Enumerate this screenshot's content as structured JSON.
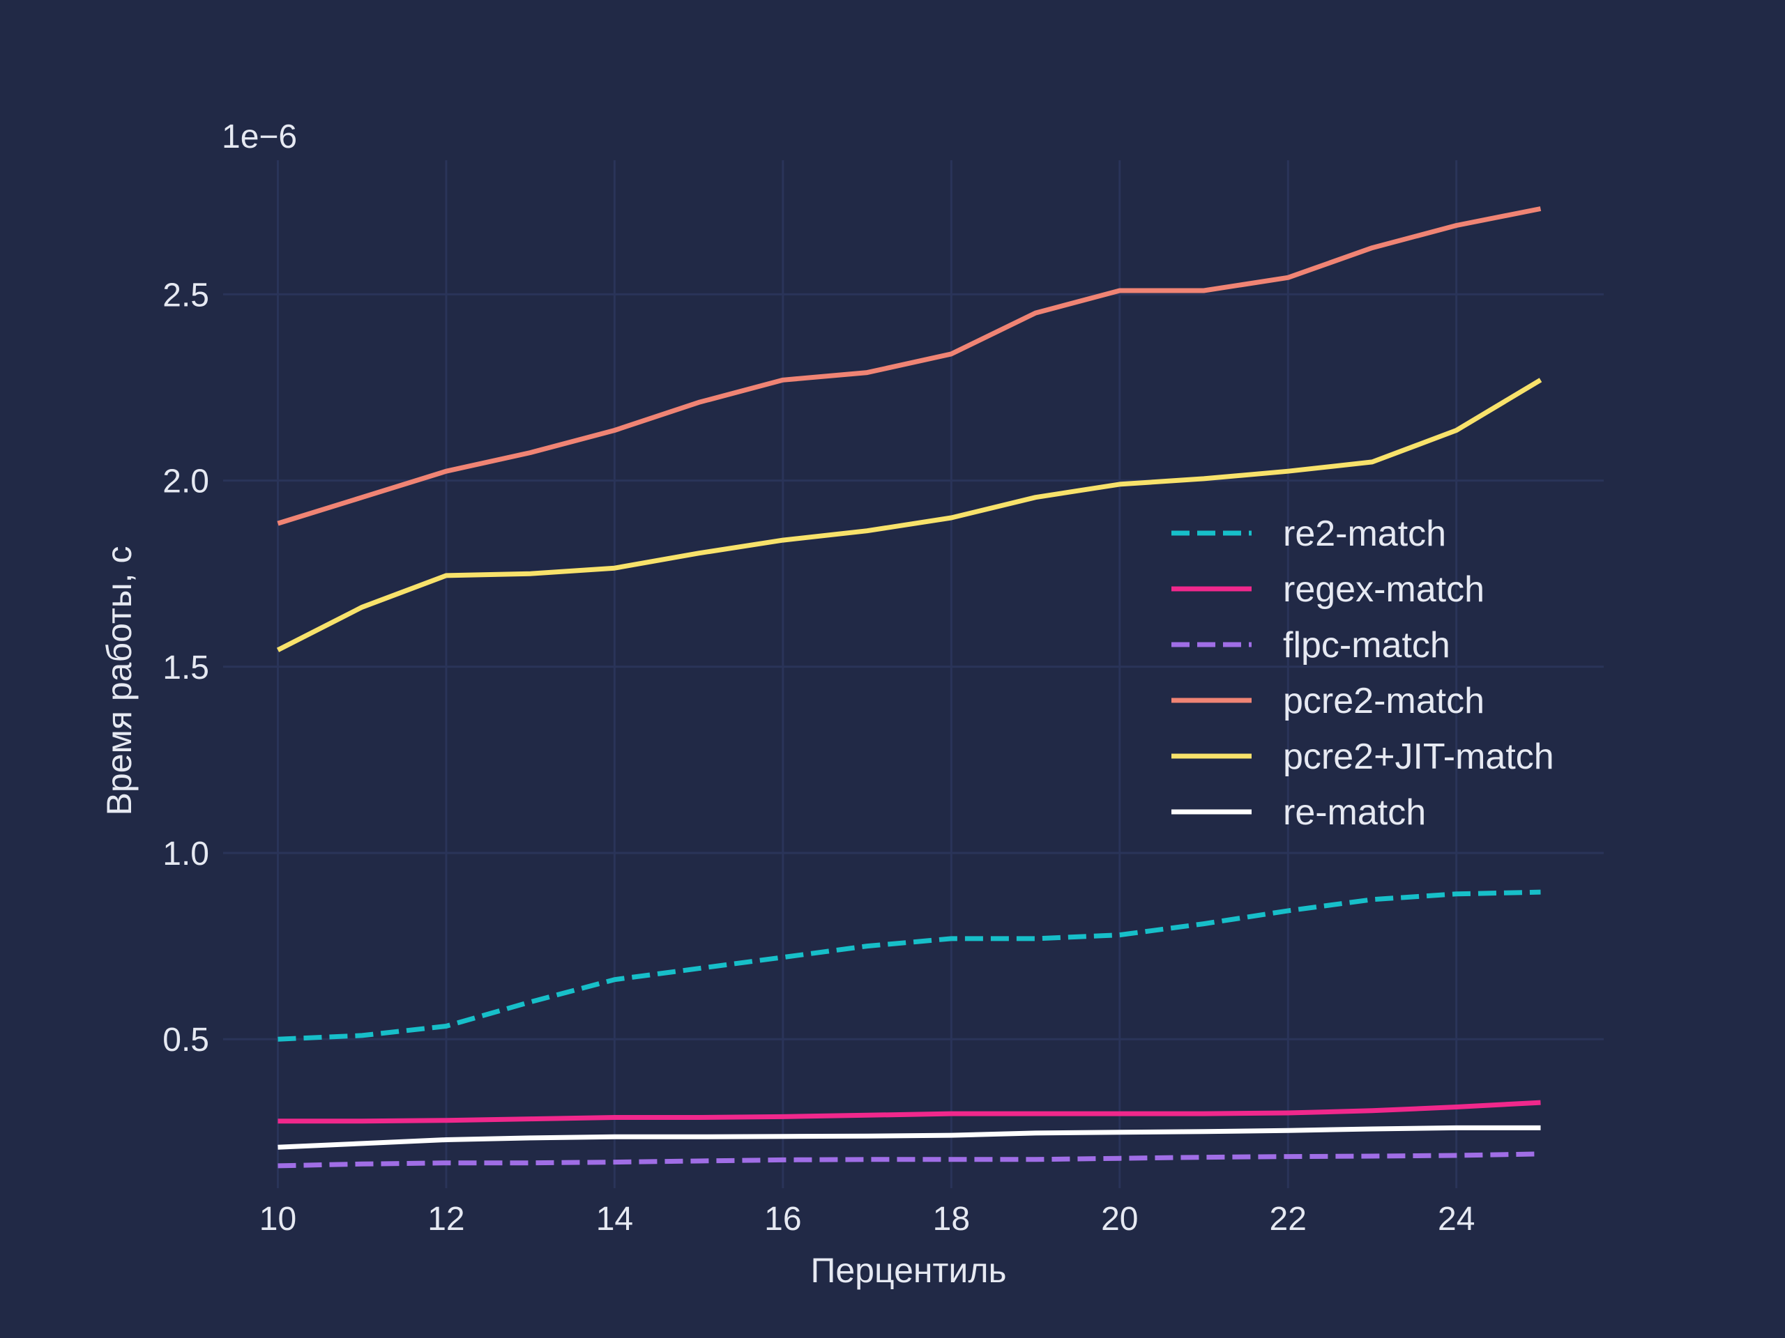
{
  "chart_data": {
    "type": "line",
    "title": "",
    "xlabel": "Перцентиль",
    "ylabel": "Время работы, с",
    "y_offset_label": "1e−6",
    "y_scale": 1e-06,
    "xlim": [
      9.35,
      25.75
    ],
    "ylim": [
      0.1,
      2.86
    ],
    "x_ticks": [
      10,
      12,
      14,
      16,
      18,
      20,
      22,
      24
    ],
    "y_ticks": [
      0.5,
      1.0,
      1.5,
      2.0,
      2.5
    ],
    "y_tick_labels": [
      "0.5",
      "1.0",
      "1.5",
      "2.0",
      "2.5"
    ],
    "grid": true,
    "legend_position": "center-right",
    "x": [
      10,
      11,
      12,
      13,
      14,
      15,
      16,
      17,
      18,
      19,
      20,
      21,
      22,
      23,
      24,
      25
    ],
    "series": [
      {
        "name": "re2-match",
        "color": "#17bfc9",
        "dash": "dashed",
        "values": [
          0.5,
          0.51,
          0.535,
          0.6,
          0.66,
          0.69,
          0.72,
          0.75,
          0.77,
          0.77,
          0.78,
          0.81,
          0.845,
          0.875,
          0.89,
          0.895
        ]
      },
      {
        "name": "regex-match",
        "color": "#f0288c",
        "dash": "solid",
        "values": [
          0.28,
          0.28,
          0.282,
          0.286,
          0.29,
          0.29,
          0.292,
          0.296,
          0.3,
          0.3,
          0.3,
          0.3,
          0.302,
          0.308,
          0.318,
          0.33
        ]
      },
      {
        "name": "flpc-match",
        "color": "#a06ee6",
        "dash": "dashed",
        "values": [
          0.16,
          0.165,
          0.168,
          0.168,
          0.17,
          0.173,
          0.176,
          0.177,
          0.177,
          0.177,
          0.18,
          0.183,
          0.185,
          0.186,
          0.188,
          0.192
        ]
      },
      {
        "name": "pcre2-match",
        "color": "#f08474",
        "dash": "solid",
        "values": [
          1.885,
          1.955,
          2.025,
          2.075,
          2.135,
          2.21,
          2.27,
          2.29,
          2.34,
          2.45,
          2.51,
          2.51,
          2.545,
          2.625,
          2.685,
          2.73
        ]
      },
      {
        "name": "pcre2+JIT-match",
        "color": "#f8e26b",
        "dash": "solid",
        "values": [
          1.545,
          1.66,
          1.745,
          1.75,
          1.765,
          1.805,
          1.84,
          1.865,
          1.9,
          1.955,
          1.99,
          2.005,
          2.025,
          2.05,
          2.135,
          2.27
        ]
      },
      {
        "name": "re-match",
        "color": "#ffffff",
        "dash": "solid",
        "values": [
          0.21,
          0.22,
          0.23,
          0.235,
          0.238,
          0.238,
          0.239,
          0.24,
          0.242,
          0.248,
          0.25,
          0.252,
          0.255,
          0.259,
          0.262,
          0.262
        ]
      }
    ]
  }
}
